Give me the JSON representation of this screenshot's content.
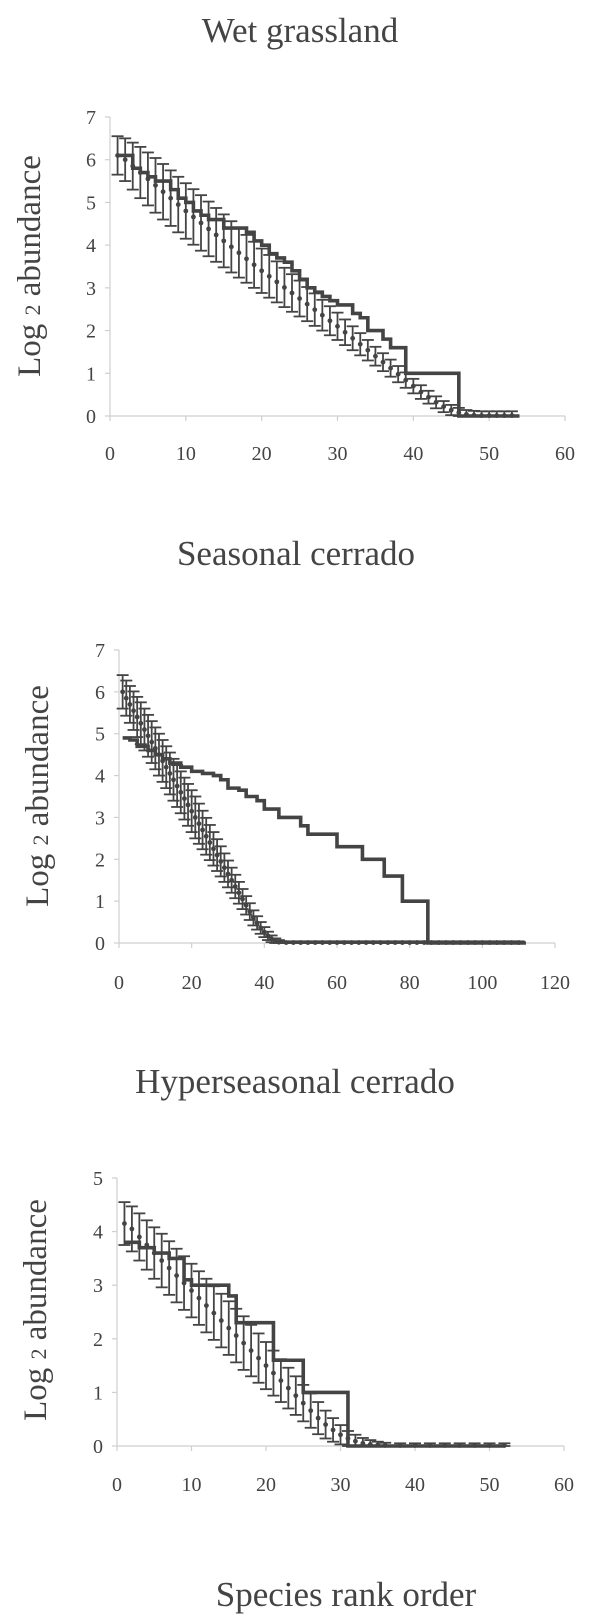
{
  "figure": {
    "xlabel": "Species rank order"
  },
  "style": {
    "ink": "#444444",
    "axis": "#cfcfcf"
  },
  "chart_data": [
    {
      "type": "line",
      "title": "Wet grassland",
      "ylabel": "Log 2 abundance",
      "ylabel_parts": [
        "Log",
        "2",
        "abundance"
      ],
      "xlim": [
        0,
        60
      ],
      "ylim": [
        0,
        7
      ],
      "xticks": [
        0,
        10,
        20,
        30,
        40,
        50,
        60
      ],
      "yticks": [
        0,
        1,
        2,
        3,
        4,
        5,
        6,
        7
      ],
      "grid": false,
      "series": [
        {
          "kind": "step",
          "x": [
            1,
            2,
            3,
            4,
            5,
            6,
            7,
            8,
            9,
            10,
            11,
            12,
            13,
            14,
            15,
            16,
            17,
            18,
            19,
            20,
            21,
            22,
            23,
            24,
            25,
            26,
            27,
            28,
            29,
            30,
            31,
            32,
            33,
            34,
            35,
            36,
            37,
            38,
            39,
            40,
            41,
            42,
            43,
            44,
            45,
            46,
            47,
            48,
            49,
            50,
            51,
            52,
            53,
            54
          ],
          "y": [
            6.1,
            6.1,
            5.8,
            5.7,
            5.6,
            5.5,
            5.5,
            5.3,
            5.1,
            5,
            4.8,
            4.7,
            4.6,
            4.6,
            4.4,
            4.4,
            4.4,
            4.3,
            4.1,
            4,
            3.8,
            3.7,
            3.6,
            3.4,
            3.2,
            3,
            2.9,
            2.8,
            2.7,
            2.6,
            2.6,
            2.4,
            2.3,
            2,
            2,
            1.8,
            1.6,
            1.6,
            1,
            1,
            1,
            1,
            1,
            1,
            1,
            0,
            0,
            0,
            0,
            0,
            0,
            0,
            0,
            0
          ]
        },
        {
          "kind": "mean_with_error",
          "x": [
            1,
            2,
            3,
            4,
            5,
            6,
            7,
            8,
            9,
            10,
            11,
            12,
            13,
            14,
            15,
            16,
            17,
            18,
            19,
            20,
            21,
            22,
            23,
            24,
            25,
            26,
            27,
            28,
            29,
            30,
            31,
            32,
            33,
            34,
            35,
            36,
            37,
            38,
            39,
            40,
            41,
            42,
            43,
            44,
            45,
            46,
            47,
            48,
            49,
            50,
            51,
            52,
            53
          ],
          "y": [
            6.1,
            6.0,
            5.85,
            5.7,
            5.55,
            5.4,
            5.25,
            5.1,
            4.95,
            4.8,
            4.66,
            4.52,
            4.38,
            4.24,
            4.1,
            3.96,
            3.82,
            3.68,
            3.54,
            3.4,
            3.27,
            3.14,
            3.01,
            2.88,
            2.75,
            2.62,
            2.49,
            2.36,
            2.23,
            2.1,
            1.96,
            1.82,
            1.68,
            1.54,
            1.4,
            1.26,
            1.12,
            0.98,
            0.84,
            0.7,
            0.56,
            0.44,
            0.32,
            0.22,
            0.14,
            0.08,
            0.04,
            0.02,
            0.01,
            0.01,
            0.01,
            0.01,
            0.01
          ],
          "err": [
            0.45,
            0.5,
            0.55,
            0.6,
            0.62,
            0.64,
            0.65,
            0.65,
            0.65,
            0.65,
            0.65,
            0.65,
            0.64,
            0.63,
            0.62,
            0.6,
            0.58,
            0.56,
            0.54,
            0.52,
            0.5,
            0.48,
            0.46,
            0.44,
            0.42,
            0.4,
            0.38,
            0.36,
            0.34,
            0.32,
            0.3,
            0.28,
            0.26,
            0.24,
            0.22,
            0.21,
            0.2,
            0.19,
            0.18,
            0.17,
            0.16,
            0.15,
            0.14,
            0.13,
            0.12,
            0.11,
            0.1,
            0.1,
            0.1,
            0.1,
            0.1,
            0.1,
            0.1
          ]
        }
      ]
    },
    {
      "type": "line",
      "title": "Seasonal cerrado",
      "ylabel": "Log 2 abundance",
      "ylabel_parts": [
        "Log",
        "2",
        "abundance"
      ],
      "xlim": [
        0,
        120
      ],
      "ylim": [
        0,
        7
      ],
      "xticks": [
        0,
        20,
        40,
        60,
        80,
        100,
        120
      ],
      "yticks": [
        0,
        1,
        2,
        3,
        4,
        5,
        6,
        7
      ],
      "grid": false,
      "series": [
        {
          "kind": "step",
          "x": [
            1,
            3,
            5,
            8,
            10,
            12,
            14,
            17,
            20,
            23,
            26,
            28,
            30,
            33,
            35,
            38,
            40,
            44,
            48,
            50,
            52,
            55,
            58,
            60,
            64,
            67,
            70,
            73,
            75,
            78,
            80,
            82,
            85,
            88,
            95,
            105,
            112
          ],
          "y": [
            4.9,
            4.85,
            4.7,
            4.6,
            4.5,
            4.4,
            4.3,
            4.2,
            4.1,
            4.05,
            4.0,
            3.9,
            3.7,
            3.65,
            3.5,
            3.4,
            3.2,
            3.0,
            3.0,
            2.8,
            2.6,
            2.6,
            2.6,
            2.3,
            2.3,
            2.0,
            2.0,
            1.6,
            1.6,
            1.0,
            1.0,
            1.0,
            0,
            0,
            0,
            0,
            0
          ]
        },
        {
          "kind": "mean_with_error",
          "x": [
            1,
            2,
            3,
            4,
            5,
            6,
            7,
            8,
            9,
            10,
            11,
            12,
            13,
            14,
            15,
            16,
            17,
            18,
            19,
            20,
            21,
            22,
            23,
            24,
            25,
            26,
            27,
            28,
            29,
            30,
            31,
            32,
            33,
            34,
            35,
            36,
            37,
            38,
            39,
            40,
            41,
            42,
            43,
            44,
            46,
            48,
            50,
            52,
            54,
            56,
            58,
            60,
            62,
            64,
            66,
            68,
            70,
            72,
            74,
            76,
            78,
            80,
            82,
            84,
            86,
            88,
            90,
            92,
            94,
            96,
            98,
            100,
            102,
            104,
            106,
            108,
            110
          ],
          "y": [
            6.0,
            5.85,
            5.7,
            5.55,
            5.4,
            5.25,
            5.1,
            4.95,
            4.8,
            4.65,
            4.5,
            4.35,
            4.2,
            4.05,
            3.9,
            3.75,
            3.6,
            3.45,
            3.3,
            3.15,
            3.0,
            2.85,
            2.7,
            2.55,
            2.4,
            2.25,
            2.1,
            1.95,
            1.8,
            1.65,
            1.5,
            1.35,
            1.2,
            1.05,
            0.9,
            0.75,
            0.6,
            0.48,
            0.36,
            0.26,
            0.17,
            0.1,
            0.05,
            0.02,
            0.01,
            0.01,
            0.01,
            0.01,
            0.01,
            0.01,
            0.01,
            0.01,
            0.01,
            0.01,
            0.01,
            0.01,
            0.01,
            0.01,
            0.01,
            0.01,
            0.01,
            0.01,
            0.01,
            0.01,
            0.01,
            0.01,
            0.01,
            0.01,
            0.01,
            0.01,
            0.01,
            0.01,
            0.01,
            0.01,
            0.01,
            0.01,
            0.01
          ],
          "err": [
            0.4,
            0.42,
            0.44,
            0.46,
            0.48,
            0.5,
            0.5,
            0.5,
            0.5,
            0.5,
            0.5,
            0.5,
            0.5,
            0.5,
            0.5,
            0.5,
            0.5,
            0.5,
            0.5,
            0.5,
            0.5,
            0.48,
            0.46,
            0.44,
            0.42,
            0.4,
            0.38,
            0.36,
            0.34,
            0.32,
            0.3,
            0.28,
            0.26,
            0.24,
            0.22,
            0.2,
            0.18,
            0.16,
            0.14,
            0.12,
            0.1,
            0.08,
            0.06,
            0.05,
            0.03,
            0.03,
            0.03,
            0.03,
            0.03,
            0.03,
            0.03,
            0.03,
            0.03,
            0.03,
            0.03,
            0.03,
            0.03,
            0.03,
            0.03,
            0.03,
            0.03,
            0.03,
            0.03,
            0.03,
            0.03,
            0.03,
            0.03,
            0.03,
            0.03,
            0.03,
            0.03,
            0.03,
            0.03,
            0.03,
            0.03,
            0.03,
            0.03
          ]
        }
      ]
    },
    {
      "type": "line",
      "title": "Hyperseasonal cerrado",
      "ylabel": "Log 2 abundance",
      "ylabel_parts": [
        "Log",
        "2",
        "abundance"
      ],
      "xlim": [
        0,
        60
      ],
      "ylim": [
        0,
        5
      ],
      "xticks": [
        0,
        10,
        20,
        30,
        40,
        50,
        60
      ],
      "yticks": [
        0,
        1,
        2,
        3,
        4,
        5
      ],
      "grid": false,
      "series": [
        {
          "kind": "step",
          "x": [
            1,
            3,
            5,
            7,
            9,
            10,
            12,
            14,
            15,
            16,
            18,
            20,
            21,
            23,
            24,
            25,
            27,
            29,
            30,
            31,
            33,
            35,
            40,
            45,
            52
          ],
          "y": [
            3.8,
            3.7,
            3.6,
            3.5,
            3.1,
            3.0,
            3.0,
            3.0,
            2.8,
            2.3,
            2.3,
            2.3,
            1.6,
            1.6,
            1.6,
            1.0,
            1.0,
            1.0,
            1.0,
            0,
            0,
            0,
            0,
            0,
            0
          ]
        },
        {
          "kind": "mean_with_error",
          "x": [
            1,
            2,
            3,
            4,
            5,
            6,
            7,
            8,
            9,
            10,
            11,
            12,
            13,
            14,
            15,
            16,
            17,
            18,
            19,
            20,
            21,
            22,
            23,
            24,
            25,
            26,
            27,
            28,
            29,
            30,
            31,
            32,
            33,
            34,
            35,
            36,
            38,
            40,
            42,
            44,
            46,
            48,
            50,
            52
          ],
          "y": [
            4.15,
            4.05,
            3.9,
            3.75,
            3.6,
            3.46,
            3.32,
            3.18,
            3.04,
            2.9,
            2.76,
            2.62,
            2.48,
            2.34,
            2.2,
            2.06,
            1.92,
            1.78,
            1.64,
            1.5,
            1.36,
            1.22,
            1.08,
            0.94,
            0.8,
            0.66,
            0.52,
            0.4,
            0.3,
            0.21,
            0.14,
            0.09,
            0.05,
            0.03,
            0.02,
            0.01,
            0.01,
            0.01,
            0.01,
            0.01,
            0.01,
            0.01,
            0.01,
            0.01
          ],
          "err": [
            0.4,
            0.42,
            0.44,
            0.46,
            0.48,
            0.5,
            0.5,
            0.5,
            0.5,
            0.5,
            0.5,
            0.5,
            0.5,
            0.5,
            0.5,
            0.5,
            0.5,
            0.48,
            0.46,
            0.44,
            0.42,
            0.4,
            0.38,
            0.36,
            0.34,
            0.32,
            0.3,
            0.26,
            0.22,
            0.18,
            0.14,
            0.12,
            0.1,
            0.08,
            0.06,
            0.05,
            0.04,
            0.04,
            0.04,
            0.04,
            0.04,
            0.04,
            0.04,
            0.04
          ]
        }
      ]
    }
  ]
}
